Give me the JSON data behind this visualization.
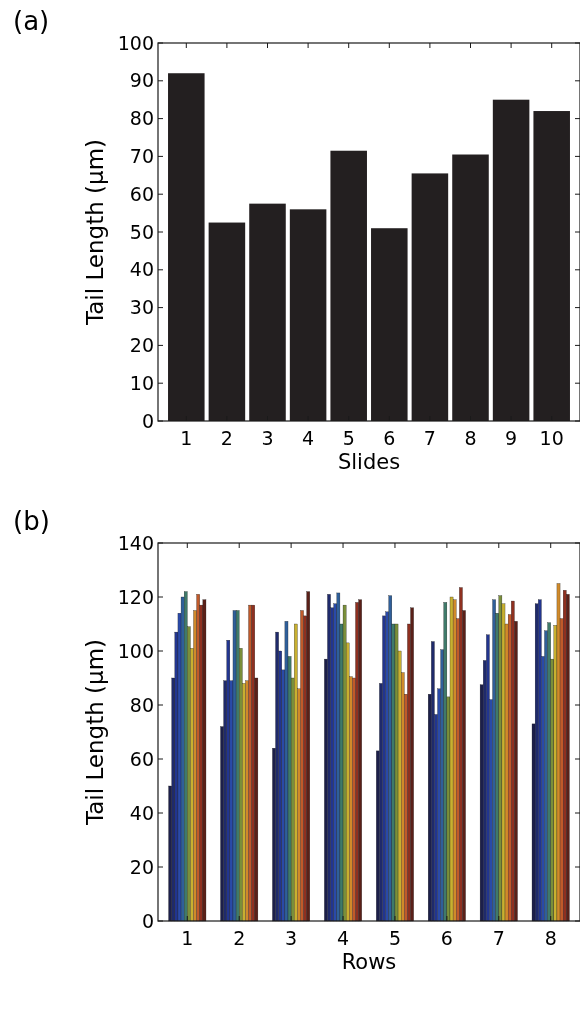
{
  "chart_data": [
    {
      "type": "bar",
      "title": "(a)",
      "xlabel": "Slides",
      "ylabel": "Tail Length (µm)",
      "categories": [
        "1",
        "2",
        "3",
        "4",
        "5",
        "6",
        "7",
        "8",
        "9",
        "10"
      ],
      "values": [
        92,
        52.5,
        57.5,
        56,
        71.5,
        51,
        65.5,
        70.5,
        85,
        82
      ],
      "color": "#231f20",
      "ylim": [
        0,
        100
      ],
      "yticks": [
        0,
        10,
        20,
        30,
        40,
        50,
        60,
        70,
        80,
        90,
        100
      ],
      "grid": false
    },
    {
      "type": "bar",
      "title": "(b)",
      "xlabel": "Rows",
      "ylabel": "Tail Length (µm)",
      "categories": [
        "1",
        "2",
        "3",
        "4",
        "5",
        "6",
        "7",
        "8"
      ],
      "ylim": [
        0,
        140
      ],
      "yticks": [
        0,
        20,
        40,
        60,
        80,
        100,
        120,
        140
      ],
      "grid": false,
      "series": [
        {
          "color": "#1c1f4a",
          "values": [
            50,
            72,
            64,
            97,
            63,
            84,
            87.5,
            73
          ]
        },
        {
          "color": "#1f2a6b",
          "values": [
            90,
            89,
            107,
            121,
            88,
            103.5,
            96.5,
            117.5
          ]
        },
        {
          "color": "#22358f",
          "values": [
            107,
            104,
            100,
            116,
            113,
            76.5,
            106,
            119
          ]
        },
        {
          "color": "#2a4aa8",
          "values": [
            114,
            89,
            93,
            117.5,
            114.5,
            86,
            82,
            98
          ]
        },
        {
          "color": "#2f5f9a",
          "values": [
            120,
            115,
            111,
            121.5,
            120.5,
            100.5,
            119,
            107.5
          ]
        },
        {
          "color": "#3f7a6a",
          "values": [
            122,
            115,
            98,
            110,
            110,
            118,
            114,
            110.5
          ]
        },
        {
          "color": "#7a8f3a",
          "values": [
            109,
            101,
            90,
            117,
            110,
            83,
            120.5,
            97
          ]
        },
        {
          "color": "#c8b030",
          "values": [
            101,
            88,
            110,
            103,
            100,
            120,
            117.5,
            109.5
          ]
        },
        {
          "color": "#d08a2a",
          "values": [
            115,
            89,
            86,
            90.5,
            92,
            119,
            110,
            125
          ]
        },
        {
          "color": "#c05a2a",
          "values": [
            121,
            117,
            115,
            90,
            84,
            112,
            113.5,
            112
          ]
        },
        {
          "color": "#8f3020",
          "values": [
            117,
            117,
            113,
            118,
            110,
            123.5,
            118.5,
            122.5
          ]
        },
        {
          "color": "#5a2018",
          "values": [
            119,
            90,
            122,
            119,
            116,
            115,
            111,
            121
          ]
        }
      ]
    }
  ]
}
